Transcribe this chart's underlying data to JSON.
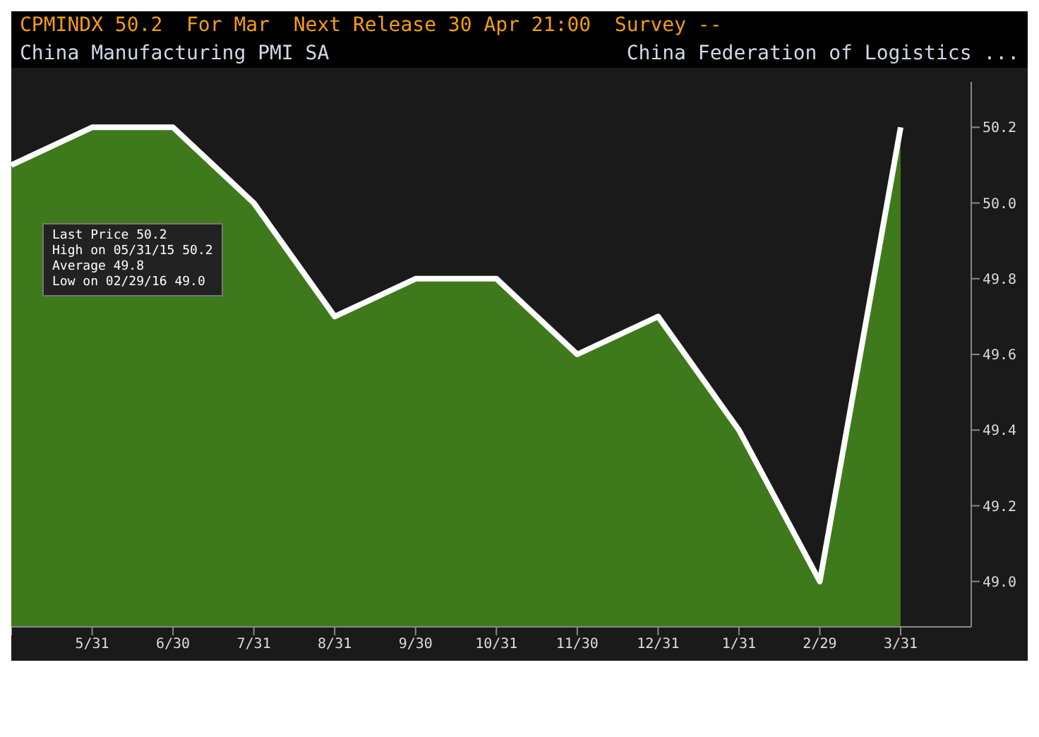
{
  "chart_data": {
    "type": "area",
    "title": "China Manufacturing PMI SA",
    "subtitle": "CPMINDX 50.2  For Mar  Next Release 30 Apr 21:00  Survey --",
    "annotations": [
      "China Federation of Logistics ...",
      "Last Price 50.2",
      "High on 05/31/15 50.2",
      "Average 49.8",
      "Low on 02/29/16 49.0"
    ],
    "categories": [
      null,
      "5/31",
      "6/30",
      "7/31",
      "8/31",
      "9/30",
      "10/31",
      "11/30",
      "12/31",
      "1/31",
      "2/29",
      "3/31"
    ],
    "series": [
      {
        "color": "#3e7a1c",
        "values": [
          50.1,
          50.2,
          50.2,
          50.0,
          49.7,
          49.8,
          49.8,
          49.6,
          49.7,
          49.4,
          49.0,
          50.2
        ]
      }
    ],
    "ylim": [
      48.88,
      50.32
    ],
    "yticks": [
      {
        "value": 49.0,
        "label": "49.0"
      },
      {
        "value": 49.2,
        "label": "49.2"
      },
      {
        "value": 49.4,
        "label": "49.4"
      },
      {
        "value": 49.6,
        "label": "49.6"
      },
      {
        "value": 49.8,
        "label": "49.8"
      },
      {
        "value": 50.0,
        "label": "50.0"
      },
      {
        "value": 50.2,
        "label": "50.2"
      }
    ]
  }
}
